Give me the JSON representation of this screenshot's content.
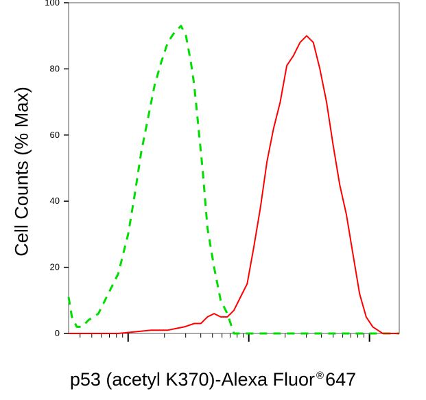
{
  "chart_data": {
    "type": "line",
    "title": "",
    "ylabel": "Cell Counts (% Max)",
    "xlabel": {
      "main": "p53 (acetyl K370)-Alexa Fluor",
      "superscript": "®",
      "suffix": "647"
    },
    "ylim": [
      0,
      100
    ],
    "yticks": [
      0,
      20,
      40,
      60,
      80,
      100
    ],
    "xscale": "log (biexponential), decades unlabeled",
    "grid": false,
    "legend": "none",
    "series": [
      {
        "color": "#00dd00",
        "style": "dashed",
        "x": [
          0.0,
          0.01,
          0.025,
          0.04,
          0.06,
          0.09,
          0.12,
          0.15,
          0.18,
          0.2,
          0.22,
          0.24,
          0.26,
          0.28,
          0.3,
          0.32,
          0.34,
          0.355,
          0.37,
          0.38,
          0.39,
          0.405,
          0.42,
          0.44,
          0.46,
          0.48,
          0.5,
          0.51,
          0.53,
          0.56,
          0.6,
          0.7,
          0.8,
          0.9,
          1.0
        ],
        "y": [
          11,
          5,
          2,
          2,
          4,
          6,
          12,
          18,
          30,
          42,
          55,
          65,
          75,
          82,
          88,
          91,
          93,
          90,
          82,
          75,
          65,
          50,
          32,
          20,
          10,
          6,
          0,
          0,
          0,
          0,
          0,
          0,
          0,
          0,
          0
        ]
      },
      {
        "color": "#ff0000",
        "style": "solid",
        "x": [
          0.0,
          0.1,
          0.15,
          0.2,
          0.25,
          0.3,
          0.35,
          0.38,
          0.4,
          0.42,
          0.44,
          0.46,
          0.48,
          0.5,
          0.52,
          0.54,
          0.56,
          0.58,
          0.6,
          0.62,
          0.64,
          0.66,
          0.68,
          0.7,
          0.72,
          0.74,
          0.76,
          0.78,
          0.8,
          0.82,
          0.84,
          0.86,
          0.88,
          0.9,
          0.92,
          0.95,
          1.0
        ],
        "y": [
          0,
          0,
          0,
          0.5,
          1,
          1,
          2,
          3,
          3,
          5,
          6,
          5,
          5,
          7,
          11,
          15,
          26,
          38,
          52,
          62,
          70,
          81,
          84,
          88,
          90,
          88,
          80,
          70,
          57,
          45,
          36,
          24,
          12,
          5,
          2,
          0,
          0
        ]
      }
    ]
  }
}
